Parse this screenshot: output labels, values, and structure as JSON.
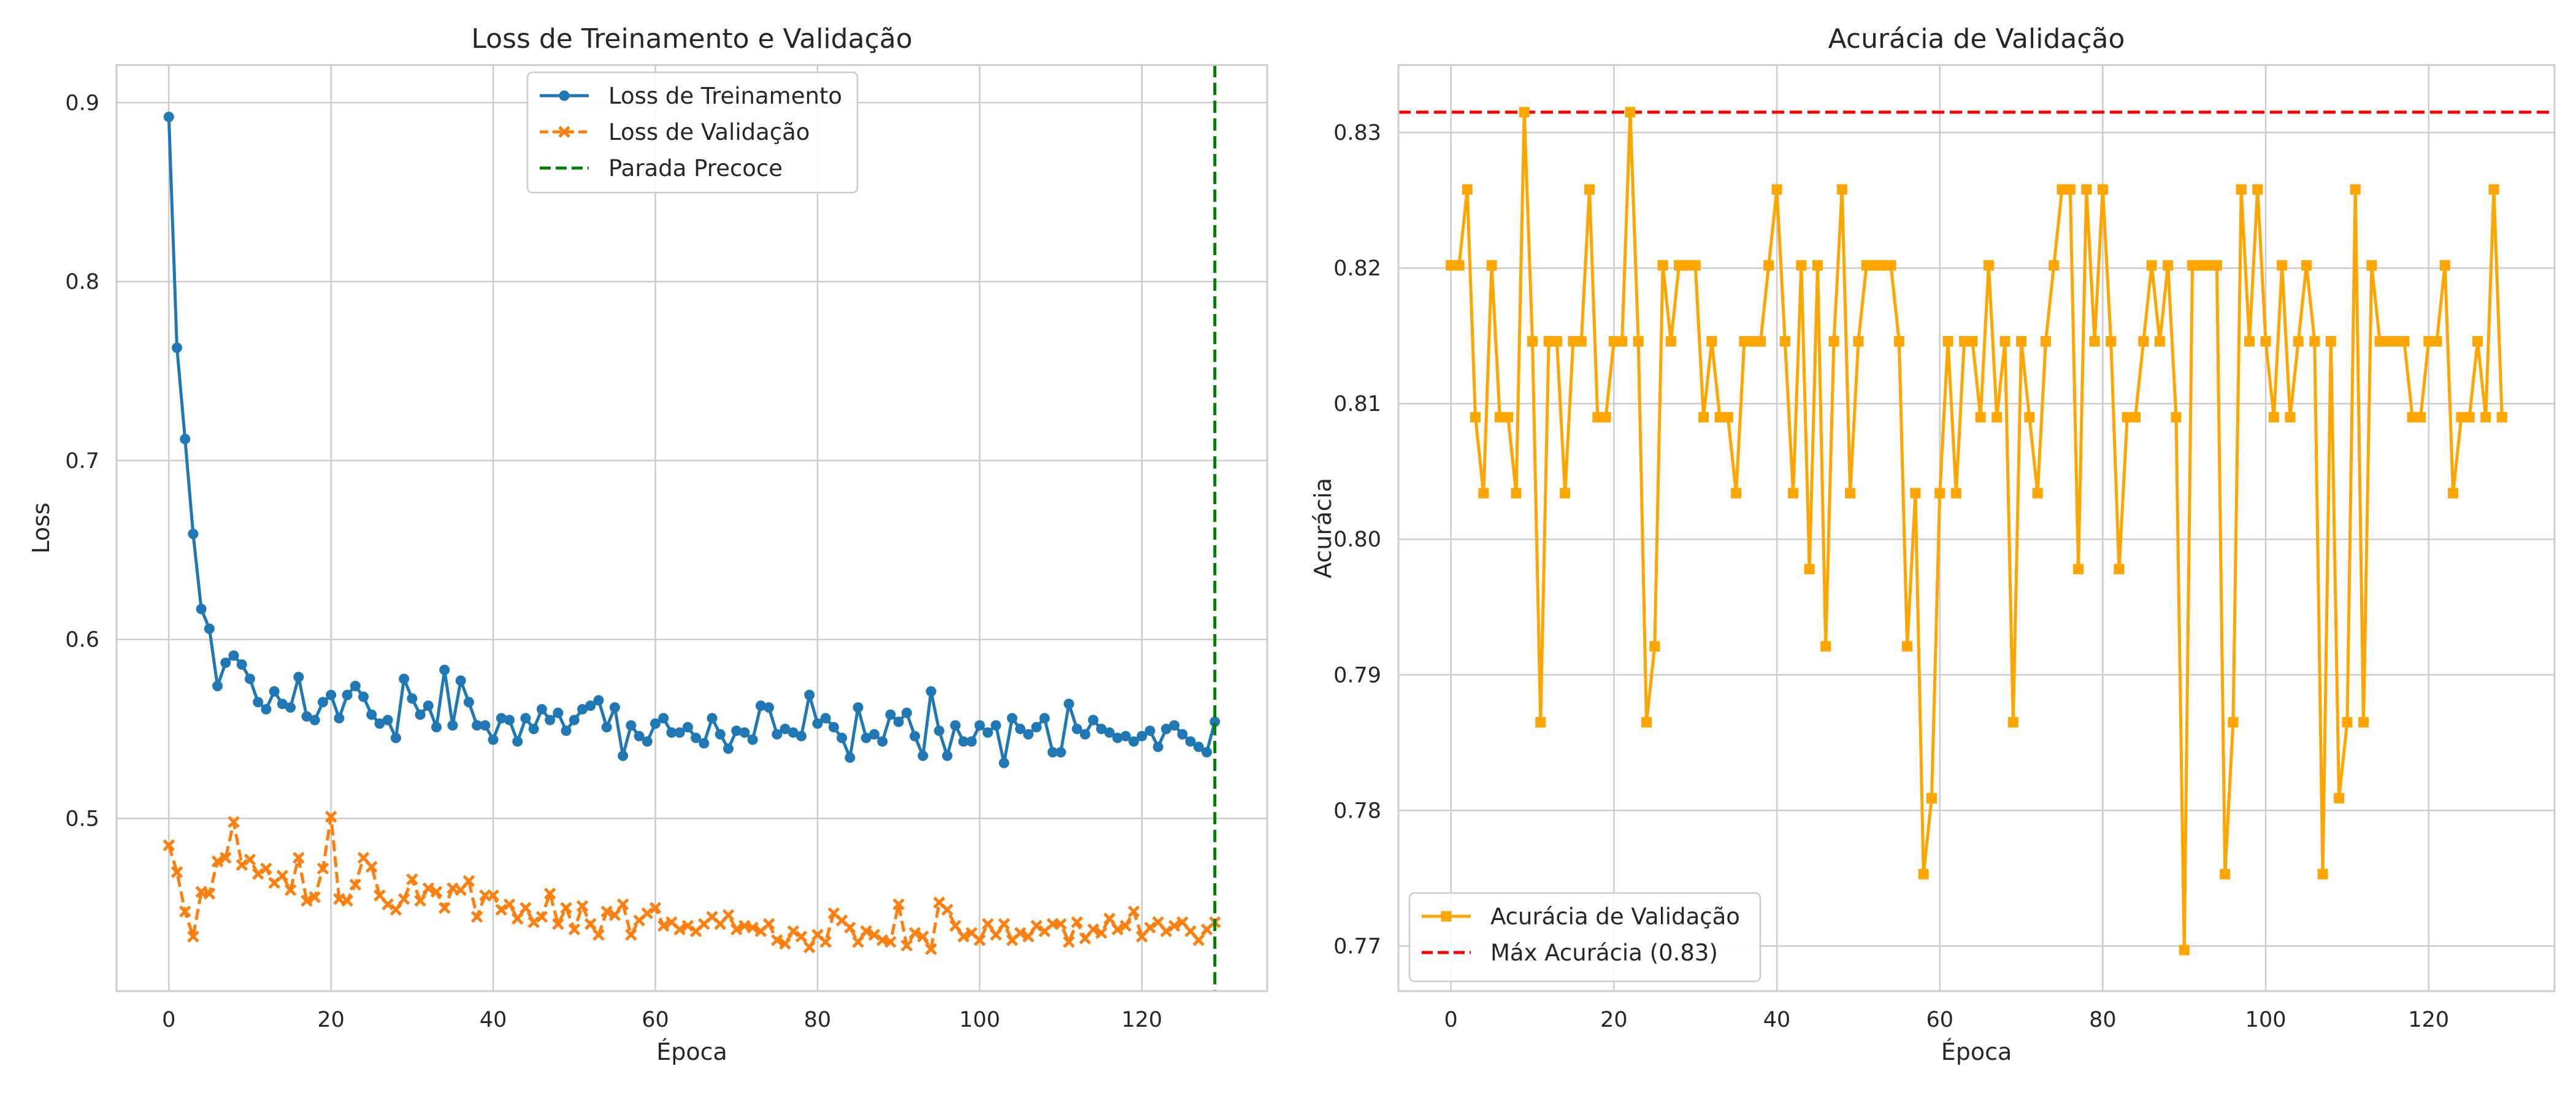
{
  "chart_data": [
    {
      "type": "line",
      "title": "Loss de Treinamento e Validação",
      "xlabel": "Época",
      "ylabel": "Loss",
      "xlim": [
        -6.45,
        135.45
      ],
      "ylim": [
        0.4035,
        0.921
      ],
      "xticks": [
        0,
        20,
        40,
        60,
        80,
        100,
        120
      ],
      "yticks": [
        0.5,
        0.6,
        0.7,
        0.8,
        0.9
      ],
      "grid": true,
      "legend": "top-center",
      "series": [
        {
          "name": "Loss de Treinamento",
          "color": "#1f77b4",
          "marker": "circle",
          "linestyle": "solid",
          "values": [
            0.892,
            0.763,
            0.712,
            0.659,
            0.617,
            0.606,
            0.574,
            0.587,
            0.591,
            0.586,
            0.578,
            0.565,
            0.561,
            0.571,
            0.564,
            0.562,
            0.579,
            0.557,
            0.555,
            0.565,
            0.569,
            0.556,
            0.569,
            0.574,
            0.568,
            0.558,
            0.553,
            0.555,
            0.545,
            0.578,
            0.567,
            0.558,
            0.563,
            0.551,
            0.583,
            0.552,
            0.577,
            0.565,
            0.552,
            0.552,
            0.544,
            0.556,
            0.555,
            0.543,
            0.556,
            0.55,
            0.561,
            0.555,
            0.559,
            0.549,
            0.555,
            0.561,
            0.563,
            0.566,
            0.551,
            0.562,
            0.535,
            0.552,
            0.546,
            0.543,
            0.553,
            0.556,
            0.548,
            0.548,
            0.551,
            0.545,
            0.542,
            0.556,
            0.547,
            0.539,
            0.549,
            0.548,
            0.544,
            0.563,
            0.562,
            0.547,
            0.55,
            0.548,
            0.546,
            0.569,
            0.553,
            0.556,
            0.551,
            0.545,
            0.534,
            0.562,
            0.545,
            0.547,
            0.543,
            0.558,
            0.554,
            0.559,
            0.546,
            0.535,
            0.571,
            0.549,
            0.535,
            0.552,
            0.543,
            0.543,
            0.552,
            0.548,
            0.552,
            0.531,
            0.556,
            0.55,
            0.547,
            0.551,
            0.556,
            0.537,
            0.537,
            0.564,
            0.55,
            0.547,
            0.555,
            0.55,
            0.548,
            0.545,
            0.546,
            0.543,
            0.546,
            0.549,
            0.54,
            0.55,
            0.552,
            0.547,
            0.543,
            0.54,
            0.537,
            0.554
          ]
        },
        {
          "name": "Loss de Validação",
          "color": "#ff7f0e",
          "marker": "x",
          "linestyle": "dashed",
          "values": [
            0.485,
            0.47,
            0.448,
            0.434,
            0.459,
            0.458,
            0.476,
            0.478,
            0.498,
            0.474,
            0.477,
            0.469,
            0.472,
            0.464,
            0.468,
            0.46,
            0.478,
            0.454,
            0.456,
            0.472,
            0.501,
            0.455,
            0.454,
            0.463,
            0.478,
            0.473,
            0.457,
            0.452,
            0.449,
            0.455,
            0.466,
            0.454,
            0.461,
            0.459,
            0.45,
            0.461,
            0.46,
            0.465,
            0.445,
            0.457,
            0.457,
            0.449,
            0.452,
            0.444,
            0.45,
            0.442,
            0.445,
            0.458,
            0.441,
            0.45,
            0.438,
            0.451,
            0.441,
            0.435,
            0.448,
            0.446,
            0.452,
            0.435,
            0.443,
            0.447,
            0.45,
            0.44,
            0.442,
            0.438,
            0.44,
            0.437,
            0.441,
            0.445,
            0.441,
            0.446,
            0.438,
            0.44,
            0.439,
            0.437,
            0.441,
            0.432,
            0.43,
            0.437,
            0.434,
            0.428,
            0.435,
            0.431,
            0.447,
            0.443,
            0.439,
            0.431,
            0.437,
            0.435,
            0.432,
            0.431,
            0.452,
            0.429,
            0.436,
            0.434,
            0.427,
            0.453,
            0.449,
            0.44,
            0.434,
            0.436,
            0.432,
            0.441,
            0.435,
            0.441,
            0.432,
            0.436,
            0.434,
            0.44,
            0.437,
            0.441,
            0.441,
            0.431,
            0.442,
            0.433,
            0.438,
            0.436,
            0.444,
            0.438,
            0.44,
            0.448,
            0.434,
            0.439,
            0.442,
            0.437,
            0.44,
            0.442,
            0.437,
            0.432,
            0.438,
            0.442
          ]
        }
      ],
      "vlines": [
        {
          "name": "Parada Precoce",
          "x": 129,
          "color": "#008000",
          "linestyle": "dashed"
        }
      ]
    },
    {
      "type": "line",
      "title": "Acurácia de Validação",
      "xlabel": "Época",
      "ylabel": "Acurácia",
      "xlim": [
        -6.45,
        135.45
      ],
      "ylim": [
        0.76667,
        0.83498
      ],
      "xticks": [
        0,
        20,
        40,
        60,
        80,
        100,
        120
      ],
      "yticks": [
        0.77,
        0.78,
        0.79,
        0.8,
        0.81,
        0.82,
        0.83
      ],
      "ytick_labels": [
        "0.77",
        "0.78",
        "0.79",
        "0.80",
        "0.81",
        "0.82",
        "0.83"
      ],
      "grid": true,
      "legend": "bottom-left",
      "series": [
        {
          "name": "Acurácia de Validação",
          "color": "#ffa500",
          "marker": "square",
          "linestyle": "solid",
          "values": [
            0.8202,
            0.8202,
            0.8258,
            0.809,
            0.8034,
            0.8202,
            0.809,
            0.809,
            0.8034,
            0.8315,
            0.8146,
            0.7865,
            0.8146,
            0.8146,
            0.8034,
            0.8146,
            0.8146,
            0.8258,
            0.809,
            0.809,
            0.8146,
            0.8146,
            0.8315,
            0.8146,
            0.7865,
            0.7921,
            0.8202,
            0.8146,
            0.8202,
            0.8202,
            0.8202,
            0.809,
            0.8146,
            0.809,
            0.809,
            0.8034,
            0.8146,
            0.8146,
            0.8146,
            0.8202,
            0.8258,
            0.8146,
            0.8034,
            0.8202,
            0.7978,
            0.8202,
            0.7921,
            0.8146,
            0.8258,
            0.8034,
            0.8146,
            0.8202,
            0.8202,
            0.8202,
            0.8202,
            0.8146,
            0.7921,
            0.8034,
            0.7753,
            0.7809,
            0.8034,
            0.8146,
            0.8034,
            0.8146,
            0.8146,
            0.809,
            0.8202,
            0.809,
            0.8146,
            0.7865,
            0.8146,
            0.809,
            0.8034,
            0.8146,
            0.8202,
            0.8258,
            0.8258,
            0.7978,
            0.8258,
            0.8146,
            0.8258,
            0.8146,
            0.7978,
            0.809,
            0.809,
            0.8146,
            0.8202,
            0.8146,
            0.8202,
            0.809,
            0.7697,
            0.8202,
            0.8202,
            0.8202,
            0.8202,
            0.7753,
            0.7865,
            0.8258,
            0.8146,
            0.8258,
            0.8146,
            0.809,
            0.8202,
            0.809,
            0.8146,
            0.8202,
            0.8146,
            0.7753,
            0.8146,
            0.7809,
            0.7865,
            0.8258,
            0.7865,
            0.8202,
            0.8146,
            0.8146,
            0.8146,
            0.8146,
            0.809,
            0.809,
            0.8146,
            0.8146,
            0.8202,
            0.8034,
            0.809,
            0.809,
            0.8146,
            0.809,
            0.8258,
            0.809
          ]
        }
      ],
      "hlines": [
        {
          "name": "Máx Acurácia (0.83)",
          "y": 0.8315,
          "color": "#ff0000",
          "linestyle": "dashed"
        }
      ]
    }
  ]
}
